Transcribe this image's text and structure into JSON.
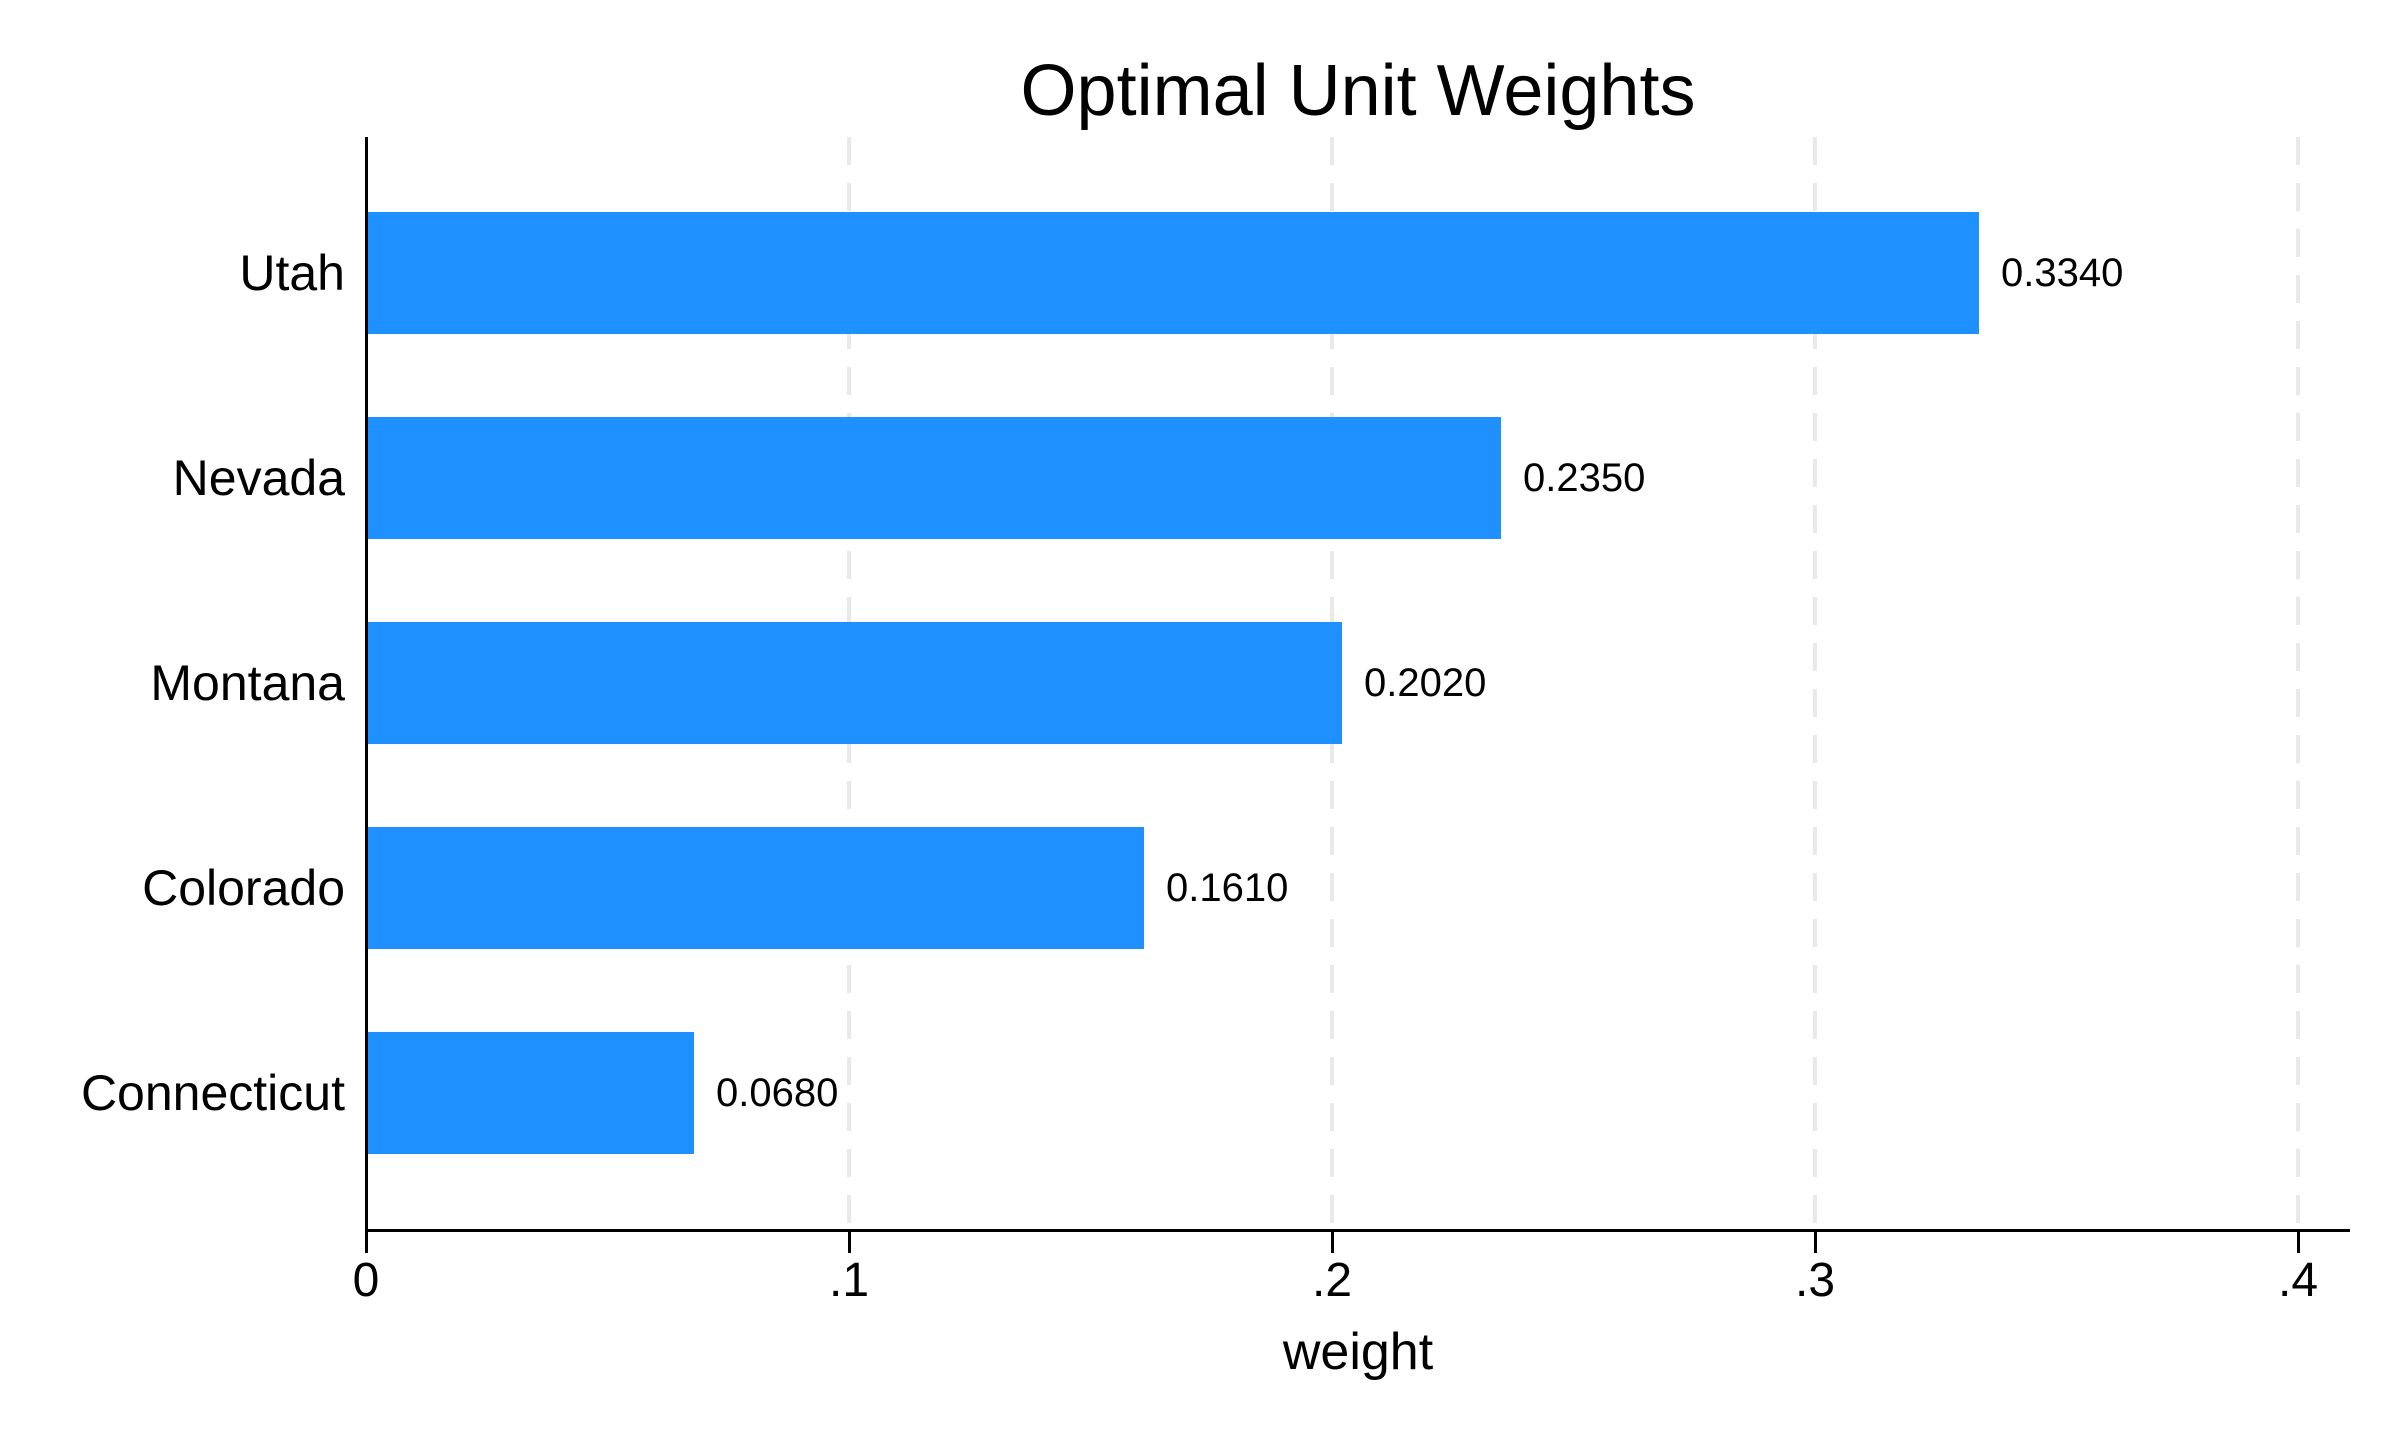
{
  "title": "Optimal Unit Weights",
  "chart_data": {
    "type": "bar",
    "orientation": "horizontal",
    "title": "Optimal Unit Weights",
    "xlabel": "weight",
    "categories": [
      "Utah",
      "Nevada",
      "Montana",
      "Colorado",
      "Connecticut"
    ],
    "values": [
      0.334,
      0.235,
      0.202,
      0.161,
      0.068
    ],
    "value_labels": [
      "0.3340",
      "0.2350",
      "0.2020",
      "0.1610",
      "0.0680"
    ],
    "xticks": [
      0,
      0.1,
      0.2,
      0.3,
      0.4
    ],
    "xtick_labels": [
      "0",
      ".1",
      ".2",
      ".3",
      ".4"
    ],
    "xlim": [
      0,
      0.41
    ],
    "grid": "vertical-dashed-gridlines-at-ticks",
    "legend": "none",
    "bar_color": "#1E90FF",
    "grid_color": "#E9E9E9",
    "axis_color": "#000000"
  }
}
